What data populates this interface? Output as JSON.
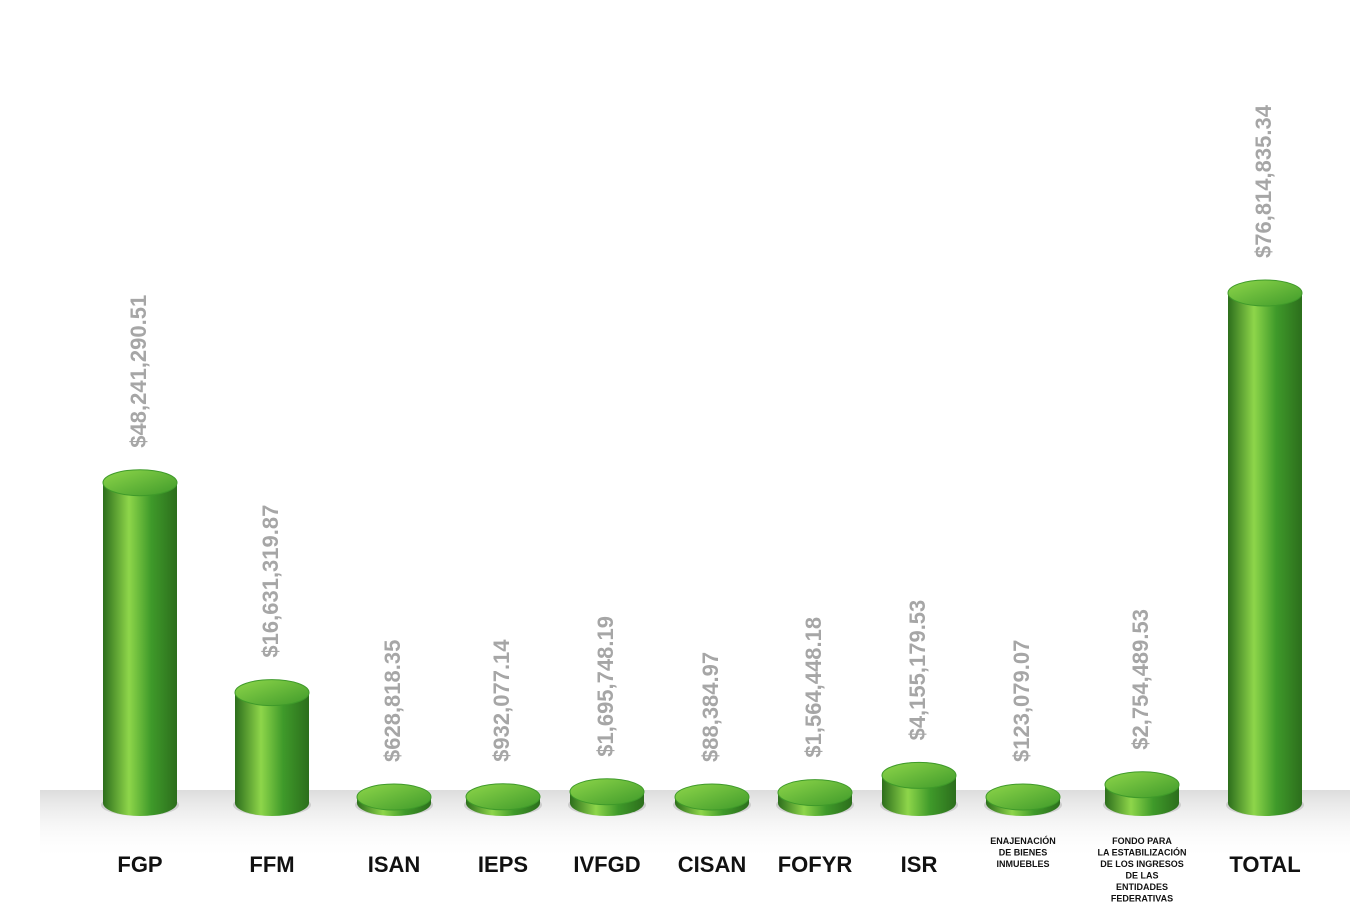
{
  "chart_data": {
    "type": "bar",
    "style": "3d-cylinder",
    "bar_color": "#3f9a2a",
    "bar_color_light": "#8ed64a",
    "bar_color_dark": "#2c6e1c",
    "value_label_color": "#a6a6a6",
    "category_label_color": "#111111",
    "categories": [
      "FGP",
      "FFM",
      "ISAN",
      "IEPS",
      "IVFGD",
      "CISAN",
      "FOFYR",
      "ISR",
      "ENAJENACIÓN DE BIENES INMUEBLES",
      "FONDO PARA LA ESTABILIZACIÓN DE LOS INGRESOS DE LAS ENTIDADES FEDERATIVAS",
      "TOTAL"
    ],
    "category_lines": [
      [
        "FGP"
      ],
      [
        "FFM"
      ],
      [
        "ISAN"
      ],
      [
        "IEPS"
      ],
      [
        "IVFGD"
      ],
      [
        "CISAN"
      ],
      [
        "FOFYR"
      ],
      [
        "ISR"
      ],
      [
        "ENAJENACIÓN",
        "DE BIENES",
        "INMUEBLES"
      ],
      [
        "FONDO PARA",
        "LA ESTABILIZACIÓN",
        "DE LOS INGRESOS",
        "DE LAS",
        "ENTIDADES",
        "FEDERATIVAS"
      ],
      [
        "TOTAL"
      ]
    ],
    "values": [
      48241290.51,
      16631319.87,
      628818.35,
      932077.14,
      1695748.19,
      88384.97,
      1564448.18,
      4155179.53,
      123079.07,
      2754489.53,
      76814835.34
    ],
    "value_labels": [
      "$48,241,290.51",
      "$16,631,319.87",
      "$628,818.35",
      "$932,077.14",
      "$1,695,748.19",
      "$88,384.97",
      "$1,564,448.18",
      "$4,155,179.53",
      "$123,079.07",
      "$2,754,489.53",
      "$76,814,835.34"
    ],
    "title": "",
    "xlabel": "",
    "ylabel": "",
    "ylim": [
      0,
      76814835.34
    ],
    "grid": false,
    "legend": "none"
  }
}
